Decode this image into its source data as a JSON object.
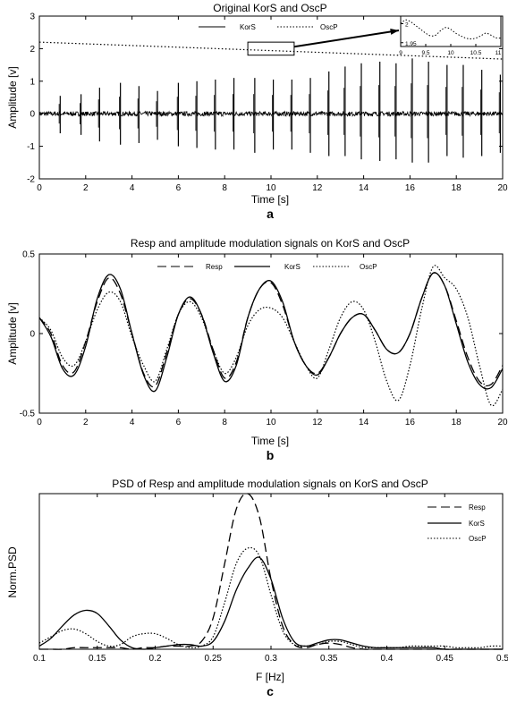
{
  "chart_data": [
    {
      "panel_label": "a",
      "type": "line",
      "title": "Original KorS and OscP",
      "xlabel": "Time [s]",
      "ylabel": "Amplitude [v]",
      "xlim": [
        0,
        20
      ],
      "ylim": [
        -2,
        3
      ],
      "xticks": [
        "0",
        "2",
        "4",
        "6",
        "8",
        "10",
        "12",
        "14",
        "16",
        "18",
        "20"
      ],
      "yticks": [
        "-2",
        "-1",
        "0",
        "1",
        "2",
        "3"
      ],
      "legend": [
        "KorS",
        "OscP"
      ],
      "oscp_trend": {
        "x": [
          0,
          20
        ],
        "y": [
          2.2,
          1.68
        ]
      },
      "kors_beats": {
        "t": [
          0.9,
          1.8,
          2.6,
          3.5,
          4.3,
          5.1,
          6.0,
          6.8,
          7.6,
          8.4,
          9.3,
          10.1,
          10.9,
          11.7,
          12.5,
          13.2,
          13.9,
          14.7,
          15.4,
          16.1,
          16.8,
          17.6,
          18.3,
          19.1,
          19.9
        ],
        "peak": [
          0.55,
          0.6,
          0.8,
          0.95,
          0.85,
          0.7,
          0.95,
          1.0,
          1.05,
          1.1,
          1.1,
          1.05,
          1.05,
          1.1,
          1.3,
          1.45,
          1.55,
          1.6,
          1.55,
          1.7,
          1.6,
          1.5,
          1.5,
          1.35,
          1.2
        ],
        "trough": [
          -0.6,
          -0.65,
          -0.85,
          -0.95,
          -0.9,
          -0.8,
          -1.0,
          -1.05,
          -1.1,
          -1.1,
          -1.2,
          -1.1,
          -1.1,
          -1.2,
          -1.3,
          -1.3,
          -1.4,
          -1.45,
          -1.4,
          -1.5,
          -1.5,
          -1.3,
          -1.35,
          -1.3,
          -1.2
        ]
      },
      "zoom_box": {
        "x": [
          9,
          11
        ],
        "y": [
          1.8,
          2.2
        ]
      },
      "inset": {
        "xticks": [
          "9",
          "9.5",
          "10",
          "10.5",
          "11"
        ],
        "yticks": [
          "1.95",
          "2"
        ],
        "xlim": [
          9,
          11
        ],
        "ylim": [
          1.94,
          2.02
        ],
        "x": [
          9.0,
          9.1,
          9.2,
          9.3,
          9.4,
          9.5,
          9.6,
          9.7,
          9.8,
          9.9,
          10.0,
          10.1,
          10.2,
          10.3,
          10.4,
          10.5,
          10.6,
          10.7,
          10.8,
          10.9,
          11.0
        ],
        "y": [
          2.0,
          2.01,
          2.005,
          1.995,
          1.985,
          1.975,
          1.968,
          1.97,
          1.982,
          1.99,
          1.985,
          1.975,
          1.968,
          1.962,
          1.96,
          1.962,
          1.968,
          1.975,
          1.97,
          1.963,
          1.962
        ]
      }
    },
    {
      "panel_label": "b",
      "type": "line",
      "title": "Resp and amplitude modulation signals on KorS and OscP",
      "xlabel": "Time [s]",
      "ylabel": "Amplitude [v]",
      "xlim": [
        0,
        20
      ],
      "ylim": [
        -0.5,
        0.5
      ],
      "xticks": [
        "0",
        "2",
        "4",
        "6",
        "8",
        "10",
        "12",
        "14",
        "16",
        "18",
        "20"
      ],
      "yticks": [
        "-0.5",
        "0",
        "0.5"
      ],
      "legend": [
        "Resp",
        "KorS",
        "OscP"
      ],
      "series": [
        {
          "name": "Resp",
          "x": [
            0,
            0.5,
            1.0,
            1.5,
            2.0,
            2.5,
            3.0,
            3.5,
            4.0,
            4.5,
            5.0,
            5.5,
            6.0,
            6.5,
            7.0,
            7.5,
            8.0,
            8.5,
            9.0,
            9.5,
            10.0,
            10.5,
            11.0,
            11.5,
            12.0,
            12.5,
            13.0,
            13.5,
            14.0,
            14.5,
            15.0,
            15.5,
            16.0,
            16.5,
            17.0,
            17.5,
            18.0,
            18.5,
            19.0,
            19.5,
            20.0
          ],
          "y": [
            0.1,
            0.0,
            -0.2,
            -0.24,
            -0.05,
            0.2,
            0.35,
            0.25,
            0.0,
            -0.25,
            -0.33,
            -0.12,
            0.12,
            0.22,
            0.12,
            -0.1,
            -0.28,
            -0.18,
            0.1,
            0.28,
            0.32,
            0.18,
            -0.05,
            -0.2,
            -0.25,
            -0.15,
            0.0,
            0.1,
            0.12,
            0.02,
            -0.1,
            -0.12,
            0.0,
            0.22,
            0.38,
            0.3,
            0.08,
            -0.15,
            -0.3,
            -0.32,
            -0.2
          ]
        },
        {
          "name": "KorS",
          "x": [
            0,
            0.5,
            1.0,
            1.5,
            2.0,
            2.5,
            3.0,
            3.5,
            4.0,
            4.5,
            5.0,
            5.5,
            6.0,
            6.5,
            7.0,
            7.5,
            8.0,
            8.5,
            9.0,
            9.5,
            10.0,
            10.5,
            11.0,
            11.5,
            12.0,
            12.5,
            13.0,
            13.5,
            14.0,
            14.5,
            15.0,
            15.5,
            16.0,
            16.5,
            17.0,
            17.5,
            18.0,
            18.5,
            19.0,
            19.5,
            20.0
          ],
          "y": [
            0.1,
            -0.02,
            -0.22,
            -0.26,
            -0.08,
            0.22,
            0.37,
            0.28,
            0.0,
            -0.26,
            -0.36,
            -0.15,
            0.12,
            0.23,
            0.12,
            -0.12,
            -0.3,
            -0.2,
            0.1,
            0.28,
            0.33,
            0.2,
            -0.05,
            -0.2,
            -0.26,
            -0.15,
            0.0,
            0.1,
            0.12,
            0.02,
            -0.1,
            -0.12,
            0.0,
            0.22,
            0.38,
            0.3,
            0.06,
            -0.18,
            -0.32,
            -0.34,
            -0.22
          ]
        },
        {
          "name": "OscP",
          "x": [
            0,
            0.5,
            1.0,
            1.5,
            2.0,
            2.5,
            3.0,
            3.5,
            4.0,
            4.5,
            5.0,
            5.5,
            6.0,
            6.5,
            7.0,
            7.5,
            8.0,
            8.5,
            9.0,
            9.5,
            10.0,
            10.5,
            11.0,
            11.5,
            12.0,
            12.5,
            13.0,
            13.5,
            14.0,
            14.5,
            15.0,
            15.5,
            16.0,
            16.5,
            17.0,
            17.5,
            18.0,
            18.5,
            19.0,
            19.5,
            20.0
          ],
          "y": [
            0.1,
            0.02,
            -0.15,
            -0.2,
            -0.05,
            0.15,
            0.26,
            0.2,
            -0.02,
            -0.2,
            -0.3,
            -0.1,
            0.12,
            0.2,
            0.1,
            -0.1,
            -0.25,
            -0.15,
            0.05,
            0.15,
            0.16,
            0.1,
            -0.05,
            -0.2,
            -0.28,
            -0.1,
            0.1,
            0.2,
            0.15,
            -0.05,
            -0.3,
            -0.42,
            -0.2,
            0.15,
            0.42,
            0.35,
            0.28,
            0.1,
            -0.2,
            -0.45,
            -0.35
          ]
        }
      ]
    },
    {
      "panel_label": "c",
      "type": "line",
      "title": "PSD of Resp and amplitude modulation signals on KorS and OscP",
      "xlabel": "F [Hz]",
      "ylabel": "Norm.PSD",
      "xlim": [
        0.1,
        0.5
      ],
      "ylim": [
        0,
        1.0
      ],
      "xticks": [
        "0.1",
        "0.15",
        "0.2",
        "0.25",
        "0.3",
        "0.35",
        "0.4",
        "0.45",
        "0.5"
      ],
      "yticks": [],
      "legend": [
        "Resp",
        "KorS",
        "OscP"
      ],
      "series": [
        {
          "name": "Resp",
          "x": [
            0.1,
            0.11,
            0.12,
            0.13,
            0.14,
            0.15,
            0.16,
            0.17,
            0.18,
            0.19,
            0.2,
            0.21,
            0.22,
            0.23,
            0.24,
            0.25,
            0.26,
            0.27,
            0.28,
            0.29,
            0.3,
            0.31,
            0.32,
            0.33,
            0.34,
            0.35,
            0.36,
            0.37,
            0.38,
            0.39,
            0.4,
            0.41,
            0.42,
            0.43,
            0.44,
            0.45,
            0.46,
            0.47,
            0.48,
            0.49,
            0.5
          ],
          "y": [
            0.0,
            0.0,
            0.0,
            0.01,
            0.01,
            0.01,
            0.01,
            0.01,
            0.0,
            0.01,
            0.01,
            0.02,
            0.02,
            0.02,
            0.05,
            0.2,
            0.55,
            0.9,
            1.0,
            0.85,
            0.45,
            0.15,
            0.03,
            0.01,
            0.03,
            0.04,
            0.03,
            0.01,
            0.0,
            0.0,
            0.0,
            0.0,
            0.0,
            0.0,
            0.0,
            0.0,
            0.0,
            0.0,
            0.0,
            0.0,
            0.0
          ]
        },
        {
          "name": "KorS",
          "x": [
            0.1,
            0.11,
            0.12,
            0.13,
            0.14,
            0.15,
            0.16,
            0.17,
            0.18,
            0.19,
            0.2,
            0.21,
            0.22,
            0.23,
            0.24,
            0.25,
            0.26,
            0.27,
            0.28,
            0.29,
            0.3,
            0.31,
            0.32,
            0.33,
            0.34,
            0.35,
            0.36,
            0.37,
            0.38,
            0.39,
            0.4,
            0.41,
            0.42,
            0.43,
            0.44,
            0.45,
            0.46,
            0.47,
            0.48,
            0.49,
            0.5
          ],
          "y": [
            0.02,
            0.07,
            0.15,
            0.22,
            0.25,
            0.23,
            0.15,
            0.06,
            0.01,
            0.0,
            0.01,
            0.02,
            0.03,
            0.03,
            0.02,
            0.05,
            0.18,
            0.38,
            0.52,
            0.59,
            0.45,
            0.2,
            0.05,
            0.02,
            0.04,
            0.06,
            0.06,
            0.04,
            0.02,
            0.01,
            0.01,
            0.01,
            0.01,
            0.01,
            0.01,
            0.0,
            0.0,
            0.0,
            0.0,
            0.0,
            0.0
          ]
        },
        {
          "name": "OscP",
          "x": [
            0.1,
            0.11,
            0.12,
            0.13,
            0.14,
            0.15,
            0.16,
            0.17,
            0.18,
            0.19,
            0.2,
            0.21,
            0.22,
            0.23,
            0.24,
            0.25,
            0.26,
            0.27,
            0.28,
            0.29,
            0.3,
            0.31,
            0.32,
            0.33,
            0.34,
            0.35,
            0.36,
            0.37,
            0.38,
            0.39,
            0.4,
            0.41,
            0.42,
            0.43,
            0.44,
            0.45,
            0.46,
            0.47,
            0.48,
            0.49,
            0.5
          ],
          "y": [
            0.04,
            0.08,
            0.12,
            0.13,
            0.1,
            0.05,
            0.02,
            0.03,
            0.08,
            0.1,
            0.1,
            0.07,
            0.03,
            0.01,
            0.02,
            0.08,
            0.3,
            0.55,
            0.65,
            0.6,
            0.35,
            0.12,
            0.03,
            0.02,
            0.03,
            0.05,
            0.05,
            0.03,
            0.01,
            0.01,
            0.01,
            0.01,
            0.02,
            0.02,
            0.02,
            0.02,
            0.01,
            0.01,
            0.01,
            0.02,
            0.02
          ]
        }
      ]
    }
  ]
}
